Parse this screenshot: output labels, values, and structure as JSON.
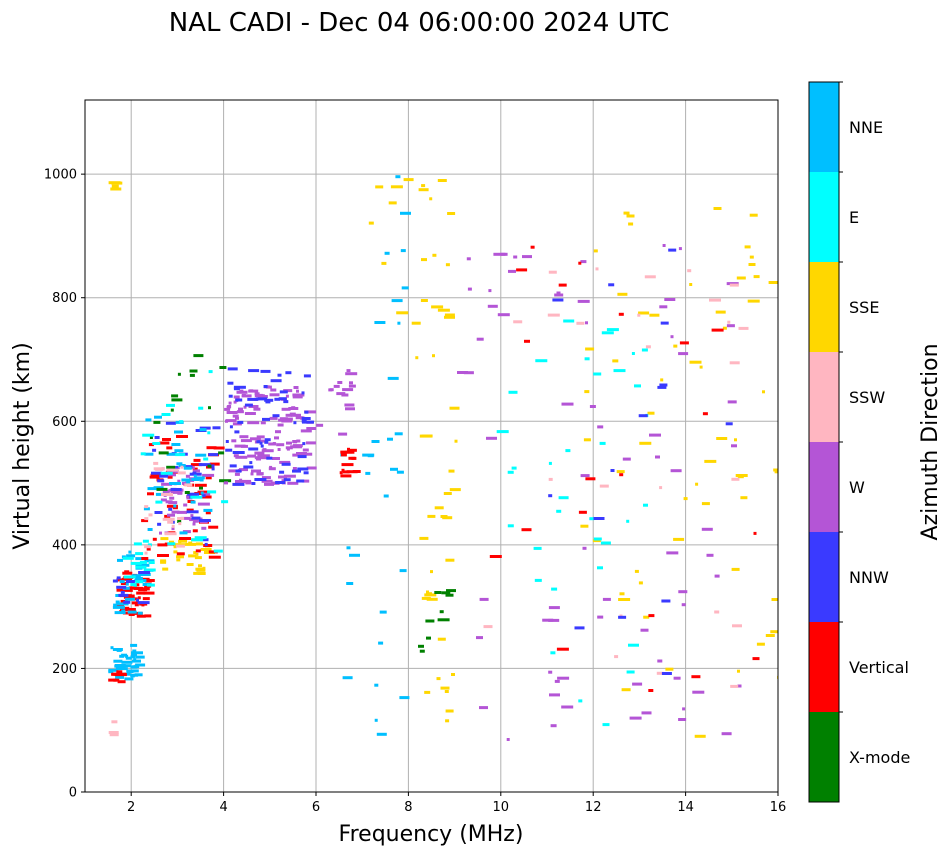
{
  "chart_data": {
    "type": "scatter",
    "title": "NAL CADI - Dec 04 06:00:00 2024 UTC",
    "xlabel": "Frequency (MHz)",
    "ylabel": "Virtual height (km)",
    "xlim": [
      1,
      16
    ],
    "ylim": [
      0,
      1120
    ],
    "xticks": [
      2,
      4,
      6,
      8,
      10,
      12,
      14,
      16
    ],
    "yticks": [
      0,
      200,
      400,
      600,
      800,
      1000
    ],
    "grid": true,
    "colorbar": {
      "label": "Azimuth Direction",
      "categories": [
        {
          "name": "X-mode",
          "color": "#008000"
        },
        {
          "name": "Vertical",
          "color": "#ff0000"
        },
        {
          "name": "NNW",
          "color": "#3a3aff"
        },
        {
          "name": "W",
          "color": "#b455d6"
        },
        {
          "name": "SSW",
          "color": "#ffb6c1"
        },
        {
          "name": "SSE",
          "color": "#ffd700"
        },
        {
          "name": "E",
          "color": "#00ffff"
        },
        {
          "name": "NNE",
          "color": "#00bfff"
        }
      ]
    },
    "traces": [
      {
        "category": "NNE",
        "freq_range": [
          1.5,
          2.1
        ],
        "height_range": [
          180,
          240
        ],
        "count": 40
      },
      {
        "category": "Vertical",
        "freq_range": [
          1.5,
          1.8
        ],
        "height_range": [
          178,
          200
        ],
        "count": 8
      },
      {
        "category": "SSE",
        "freq_range": [
          1.5,
          1.6
        ],
        "height_range": [
          975,
          1000
        ],
        "count": 4
      },
      {
        "category": "SSW",
        "freq_range": [
          1.5,
          1.6
        ],
        "height_range": [
          95,
          125
        ],
        "count": 4
      },
      {
        "category": "Vertical",
        "freq_range": [
          1.6,
          2.3
        ],
        "height_range": [
          285,
          360
        ],
        "count": 45
      },
      {
        "category": "NNE",
        "freq_range": [
          1.6,
          2.3
        ],
        "height_range": [
          290,
          400
        ],
        "count": 30
      },
      {
        "category": "E",
        "freq_range": [
          1.8,
          2.4
        ],
        "height_range": [
          330,
          420
        ],
        "count": 15
      },
      {
        "category": "NNW",
        "freq_range": [
          1.6,
          2.2
        ],
        "height_range": [
          295,
          360
        ],
        "count": 10
      },
      {
        "category": "SSE",
        "freq_range": [
          2.6,
          3.6
        ],
        "height_range": [
          355,
          415
        ],
        "count": 30
      },
      {
        "category": "Vertical",
        "freq_range": [
          2.2,
          3.8
        ],
        "height_range": [
          380,
          580
        ],
        "count": 50
      },
      {
        "category": "W",
        "freq_range": [
          2.6,
          3.6
        ],
        "height_range": [
          420,
          540
        ],
        "count": 45
      },
      {
        "category": "NNW",
        "freq_range": [
          2.4,
          3.8
        ],
        "height_range": [
          400,
          600
        ],
        "count": 35
      },
      {
        "category": "NNE",
        "freq_range": [
          2.2,
          3.6
        ],
        "height_range": [
          420,
          620
        ],
        "count": 30
      },
      {
        "category": "X-mode",
        "freq_range": [
          2.4,
          4.0
        ],
        "height_range": [
          420,
          720
        ],
        "count": 20
      },
      {
        "category": "SSW",
        "freq_range": [
          2.2,
          3.2
        ],
        "height_range": [
          380,
          540
        ],
        "count": 20
      },
      {
        "category": "E",
        "freq_range": [
          2.2,
          4.0
        ],
        "height_range": [
          390,
          700
        ],
        "count": 20
      },
      {
        "category": "W",
        "freq_range": [
          4.0,
          5.8
        ],
        "height_range": [
          500,
          660
        ],
        "count": 130
      },
      {
        "category": "NNW",
        "freq_range": [
          4.0,
          5.8
        ],
        "height_range": [
          500,
          690
        ],
        "count": 60
      },
      {
        "category": "SSE",
        "freq_range": [
          6.6,
          8.4
        ],
        "height_range": [
          700,
          1000
        ],
        "count": 10
      },
      {
        "category": "NNE",
        "freq_range": [
          6.5,
          8.0
        ],
        "height_range": [
          80,
          1010
        ],
        "count": 30
      },
      {
        "category": "Vertical",
        "freq_range": [
          6.5,
          6.8
        ],
        "height_range": [
          510,
          560
        ],
        "count": 14
      },
      {
        "category": "W",
        "freq_range": [
          6.0,
          6.8
        ],
        "height_range": [
          580,
          700
        ],
        "count": 15
      },
      {
        "category": "SSE",
        "freq_range": [
          8.2,
          9.0
        ],
        "height_range": [
          85,
          1000
        ],
        "count": 40
      },
      {
        "category": "X-mode",
        "freq_range": [
          8.2,
          9.0
        ],
        "height_range": [
          230,
          330
        ],
        "count": 10
      },
      {
        "category": "W",
        "freq_range": [
          9.0,
          15.2
        ],
        "height_range": [
          85,
          900
        ],
        "count": 70
      },
      {
        "category": "SSE",
        "freq_range": [
          11.4,
          16.0
        ],
        "height_range": [
          90,
          960
        ],
        "count": 60
      },
      {
        "category": "E",
        "freq_range": [
          9.8,
          13.2
        ],
        "height_range": [
          100,
          780
        ],
        "count": 35
      },
      {
        "category": "Vertical",
        "freq_range": [
          9.4,
          16.0
        ],
        "height_range": [
          150,
          910
        ],
        "count": 20
      },
      {
        "category": "SSW",
        "freq_range": [
          9.6,
          15.2
        ],
        "height_range": [
          90,
          870
        ],
        "count": 25
      },
      {
        "category": "NNW",
        "freq_range": [
          10.4,
          15.2
        ],
        "height_range": [
          160,
          900
        ],
        "count": 15
      }
    ]
  }
}
